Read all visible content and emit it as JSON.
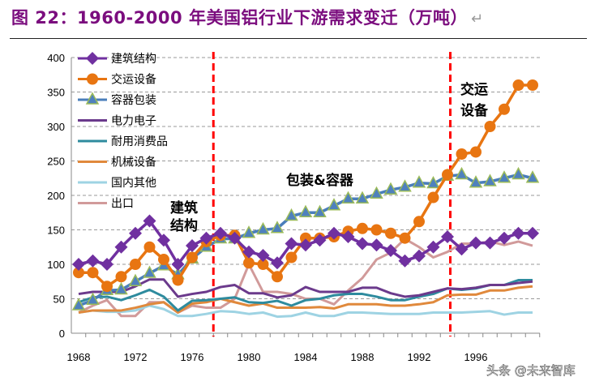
{
  "title": "图 22：1960-2000 年美国铝行业下游需求变迁（万吨）",
  "return_mark": "↵",
  "watermark": "头条 @未来智库",
  "chart_data": {
    "type": "line",
    "title": "图 22：1960-2000 年美国铝行业下游需求变迁（万吨）",
    "xlabel": "",
    "ylabel": "",
    "x": [
      1968,
      1969,
      1970,
      1971,
      1972,
      1973,
      1974,
      1975,
      1976,
      1977,
      1978,
      1979,
      1980,
      1981,
      1982,
      1983,
      1984,
      1985,
      1986,
      1987,
      1988,
      1989,
      1990,
      1991,
      1992,
      1993,
      1994,
      1995,
      1996,
      1997,
      1998,
      1999,
      2000
    ],
    "xticks": [
      "1968",
      "1972",
      "1976",
      "1980",
      "1984",
      "1988",
      "1992",
      "1996"
    ],
    "yticks": [
      "0",
      "50",
      "100",
      "150",
      "200",
      "250",
      "300",
      "350",
      "400"
    ],
    "ylim": [
      0,
      400
    ],
    "grid": "horizontal dashed",
    "legend_position": "top-left",
    "vertical_markers": [
      1977.5,
      1994.2
    ],
    "marker_color": "#ff0000",
    "annotations": [
      "建筑\n结构",
      "包装&容器",
      "交运\n设备"
    ],
    "series": [
      {
        "name": "建筑结构",
        "color": "#7030a0",
        "marker": "diamond",
        "values": [
          100,
          105,
          100,
          125,
          145,
          163,
          135,
          100,
          127,
          138,
          145,
          138,
          118,
          113,
          102,
          130,
          128,
          135,
          145,
          140,
          130,
          128,
          120,
          105,
          112,
          125,
          140,
          122,
          131,
          131,
          138,
          145,
          145
        ]
      },
      {
        "name": "交运设备",
        "color": "#e87511",
        "marker": "circle",
        "values": [
          88,
          88,
          68,
          82,
          100,
          125,
          107,
          77,
          110,
          133,
          142,
          142,
          102,
          100,
          82,
          110,
          138,
          138,
          140,
          148,
          152,
          150,
          145,
          138,
          162,
          197,
          230,
          260,
          263,
          300,
          325,
          360,
          360
        ]
      },
      {
        "name": "容器包装",
        "color": "#4a7ebb",
        "marker": "triangle",
        "values": [
          40,
          48,
          62,
          63,
          75,
          87,
          98,
          85,
          108,
          125,
          137,
          137,
          145,
          150,
          152,
          170,
          175,
          175,
          185,
          195,
          195,
          202,
          208,
          212,
          218,
          217,
          228,
          230,
          218,
          220,
          225,
          230,
          225
        ]
      },
      {
        "name": "电力电子",
        "color": "#6b3a8c",
        "marker": "none",
        "values": [
          57,
          60,
          60,
          60,
          68,
          78,
          78,
          53,
          57,
          60,
          67,
          70,
          58,
          58,
          52,
          55,
          67,
          60,
          60,
          60,
          66,
          66,
          58,
          53,
          55,
          60,
          65,
          64,
          66,
          70,
          70,
          73,
          75
        ]
      },
      {
        "name": "耐用消费品",
        "color": "#2e8b9e",
        "marker": "none",
        "values": [
          45,
          52,
          53,
          48,
          55,
          63,
          53,
          33,
          47,
          48,
          50,
          52,
          45,
          44,
          47,
          40,
          48,
          50,
          55,
          57,
          57,
          53,
          48,
          48,
          53,
          57,
          65,
          63,
          65,
          70,
          70,
          77,
          77
        ]
      },
      {
        "name": "机械设备",
        "color": "#e0893c",
        "marker": "none",
        "values": [
          30,
          33,
          33,
          33,
          37,
          42,
          45,
          30,
          43,
          45,
          50,
          45,
          40,
          43,
          37,
          37,
          37,
          38,
          36,
          42,
          42,
          42,
          40,
          40,
          42,
          45,
          55,
          56,
          56,
          62,
          62,
          66,
          68
        ]
      },
      {
        "name": "国内其他",
        "color": "#9ed3e3",
        "marker": "none",
        "values": [
          30,
          33,
          31,
          31,
          33,
          40,
          35,
          25,
          25,
          28,
          32,
          31,
          28,
          30,
          24,
          25,
          30,
          25,
          25,
          30,
          30,
          29,
          28,
          28,
          28,
          30,
          30,
          30,
          31,
          32,
          27,
          30,
          30
        ]
      },
      {
        "name": "出口",
        "color": "#d19a9a",
        "marker": "none",
        "values": [
          30,
          40,
          48,
          25,
          25,
          45,
          45,
          30,
          40,
          37,
          37,
          50,
          100,
          60,
          60,
          57,
          50,
          50,
          42,
          62,
          80,
          107,
          117,
          137,
          125,
          110,
          118,
          130,
          130,
          133,
          128,
          133,
          127
        ]
      }
    ]
  }
}
